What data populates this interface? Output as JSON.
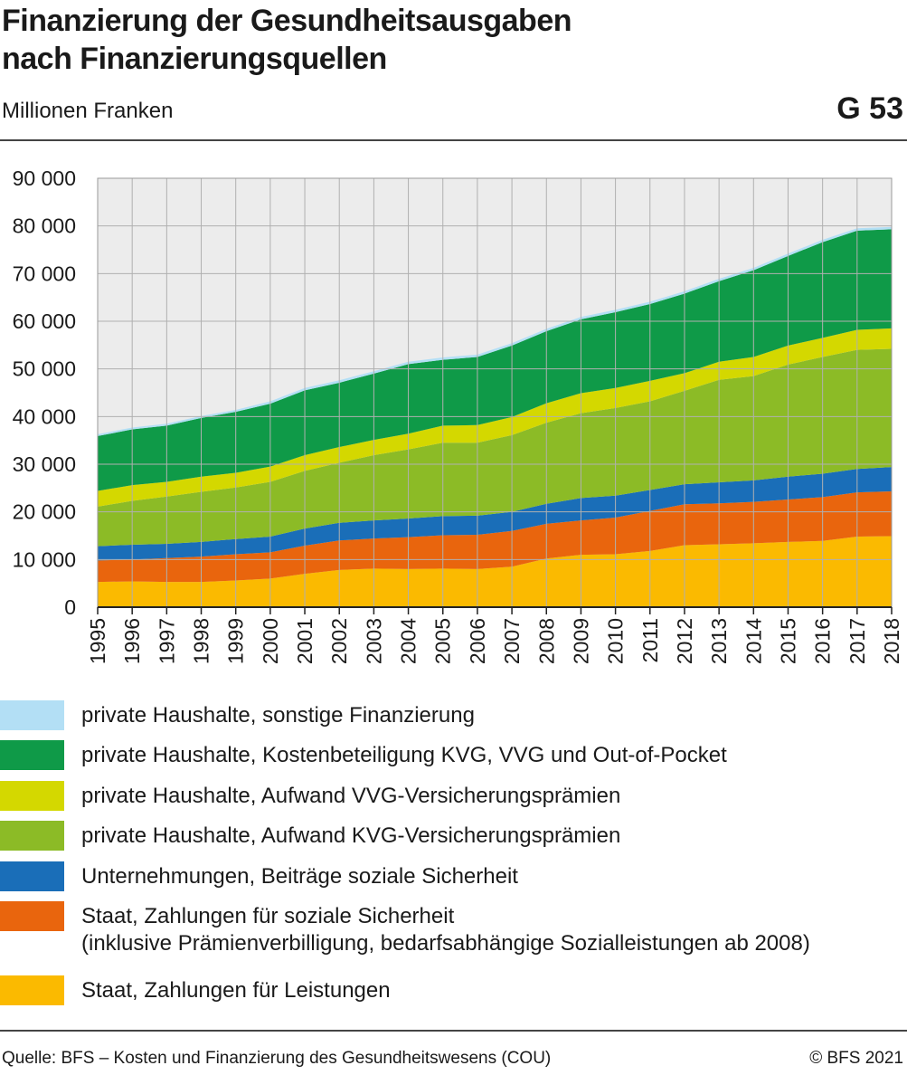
{
  "header": {
    "title_line1": "Finanzierung der Gesundheitsausgaben",
    "title_line2": "nach Finanzierungsquellen",
    "subtitle": "Millionen Franken",
    "chart_number": "G 53"
  },
  "footer": {
    "source": "Quelle: BFS – Kosten und Finanzierung des Gesundheitswesens (COU)",
    "copyright": "© BFS 2021"
  },
  "chart_data": {
    "type": "area",
    "stacked": true,
    "title": "Finanzierung der Gesundheitsausgaben nach Finanzierungsquellen",
    "subtitle": "Millionen Franken",
    "xlabel": "",
    "ylabel": "",
    "ylim": [
      0,
      90000
    ],
    "yticks": [
      0,
      10000,
      20000,
      30000,
      40000,
      50000,
      60000,
      70000,
      80000,
      90000
    ],
    "ytick_labels": [
      "0",
      "10 000",
      "20 000",
      "30 000",
      "40 000",
      "50 000",
      "60 000",
      "70 000",
      "80 000",
      "90 000"
    ],
    "grid": true,
    "legend_position": "bottom",
    "plot_background": "#ececec",
    "x": [
      "1995",
      "1996",
      "1997",
      "1998",
      "1999",
      "2000",
      "2001",
      "2002",
      "2003",
      "2004",
      "2005",
      "2006",
      "2007",
      "2008",
      "2009",
      "2010",
      "2011",
      "2012",
      "2013",
      "2014",
      "2015",
      "2016",
      "2017",
      "2018"
    ],
    "series": [
      {
        "name": "Staat, Zahlungen für Leistungen",
        "color": "#fbba00",
        "values": [
          5300,
          5400,
          5300,
          5300,
          5600,
          6000,
          7000,
          7800,
          8100,
          8000,
          8100,
          8000,
          8500,
          10200,
          11000,
          11100,
          11800,
          13000,
          13200,
          13400,
          13700,
          13900,
          14800,
          14900
        ]
      },
      {
        "name": "Staat, Zahlungen für soziale Sicherheit",
        "note": "(inklusive Prämienverbilligung, bedarfsabhängige Sozialleistungen ab 2008)",
        "color": "#e9650d",
        "values": [
          4500,
          4600,
          5000,
          5300,
          5500,
          5500,
          5900,
          6200,
          6300,
          6700,
          7000,
          7200,
          7500,
          7300,
          7200,
          7700,
          8400,
          8600,
          8600,
          8700,
          8900,
          9200,
          9300,
          9400
        ]
      },
      {
        "name": "Unternehmungen, Beiträge soziale Sicherheit",
        "color": "#1a6eb8",
        "values": [
          3000,
          3100,
          3000,
          3100,
          3200,
          3300,
          3600,
          3700,
          3800,
          3900,
          4000,
          4000,
          4000,
          4200,
          4700,
          4600,
          4400,
          4200,
          4400,
          4500,
          4800,
          4900,
          4900,
          5100
        ]
      },
      {
        "name": "private Haushalte, Aufwand KVG-Versicherungsprämien",
        "color": "#8cbb26",
        "values": [
          8300,
          9200,
          9900,
          10500,
          10800,
          11500,
          12100,
          12600,
          13700,
          14500,
          15400,
          15300,
          16100,
          17000,
          17800,
          18400,
          18600,
          19600,
          21500,
          21900,
          23500,
          24500,
          25000,
          24800
        ]
      },
      {
        "name": "private Haushalte, Aufwand VVG-Versicherungsprämien",
        "color": "#d4d800",
        "values": [
          3300,
          3300,
          3100,
          3200,
          3100,
          3200,
          3300,
          3300,
          3200,
          3300,
          3600,
          3700,
          3800,
          4100,
          4200,
          4200,
          4300,
          3700,
          3800,
          4000,
          4000,
          4000,
          4200,
          4300
        ]
      },
      {
        "name": "private Haushalte, Kostenbeteiligung KVG, VVG und Out-of-Pocket",
        "color": "#0f9a48",
        "values": [
          11500,
          11700,
          11800,
          12300,
          12800,
          13200,
          13600,
          13500,
          13900,
          14600,
          13800,
          14300,
          15000,
          15100,
          15500,
          15900,
          16100,
          16700,
          16900,
          18200,
          18800,
          20100,
          20800,
          20800
        ]
      },
      {
        "name": "private Haushalte, sonstige Finanzierung",
        "color": "#b3dff5",
        "values": [
          400,
          400,
          400,
          400,
          400,
          500,
          500,
          500,
          500,
          500,
          500,
          500,
          500,
          500,
          500,
          500,
          500,
          500,
          500,
          500,
          500,
          500,
          500,
          500
        ]
      }
    ]
  }
}
